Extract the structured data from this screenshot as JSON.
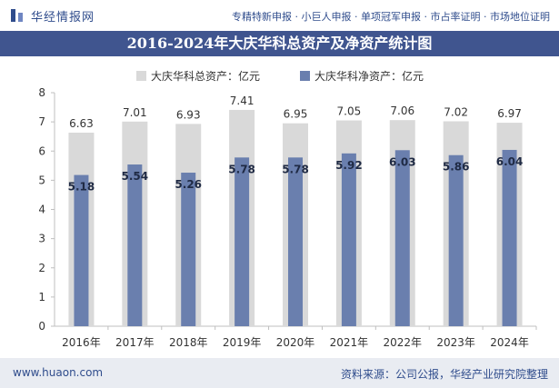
{
  "header": {
    "brand": "华经情报网",
    "tagline": "专精特新申报 · 小巨人申报 · 单项冠军申报 · 市占率证明 · 市场地位证明"
  },
  "chart_data": {
    "type": "bar",
    "title": "2016-2024年大庆华科总资产及净资产统计图",
    "categories": [
      "2016年",
      "2017年",
      "2018年",
      "2019年",
      "2020年",
      "2021年",
      "2022年",
      "2023年",
      "2024年"
    ],
    "series": [
      {
        "name": "大庆华科总资产：亿元",
        "color": "#d9d9d9",
        "values": [
          6.63,
          7.01,
          6.93,
          7.41,
          6.95,
          7.05,
          7.06,
          7.02,
          6.97
        ]
      },
      {
        "name": "大庆华科净资产：亿元",
        "color": "#6a7fae",
        "values": [
          5.18,
          5.54,
          5.26,
          5.78,
          5.78,
          5.92,
          6.03,
          5.86,
          6.04
        ]
      }
    ],
    "ylim": [
      0,
      8
    ],
    "yticks": [
      0,
      1,
      2,
      3,
      4,
      5,
      6,
      7,
      8
    ],
    "legend_position": "top-center"
  },
  "footer": {
    "url": "www.huaon.com",
    "source": "资料来源：公司公报，华经产业研究院整理"
  }
}
